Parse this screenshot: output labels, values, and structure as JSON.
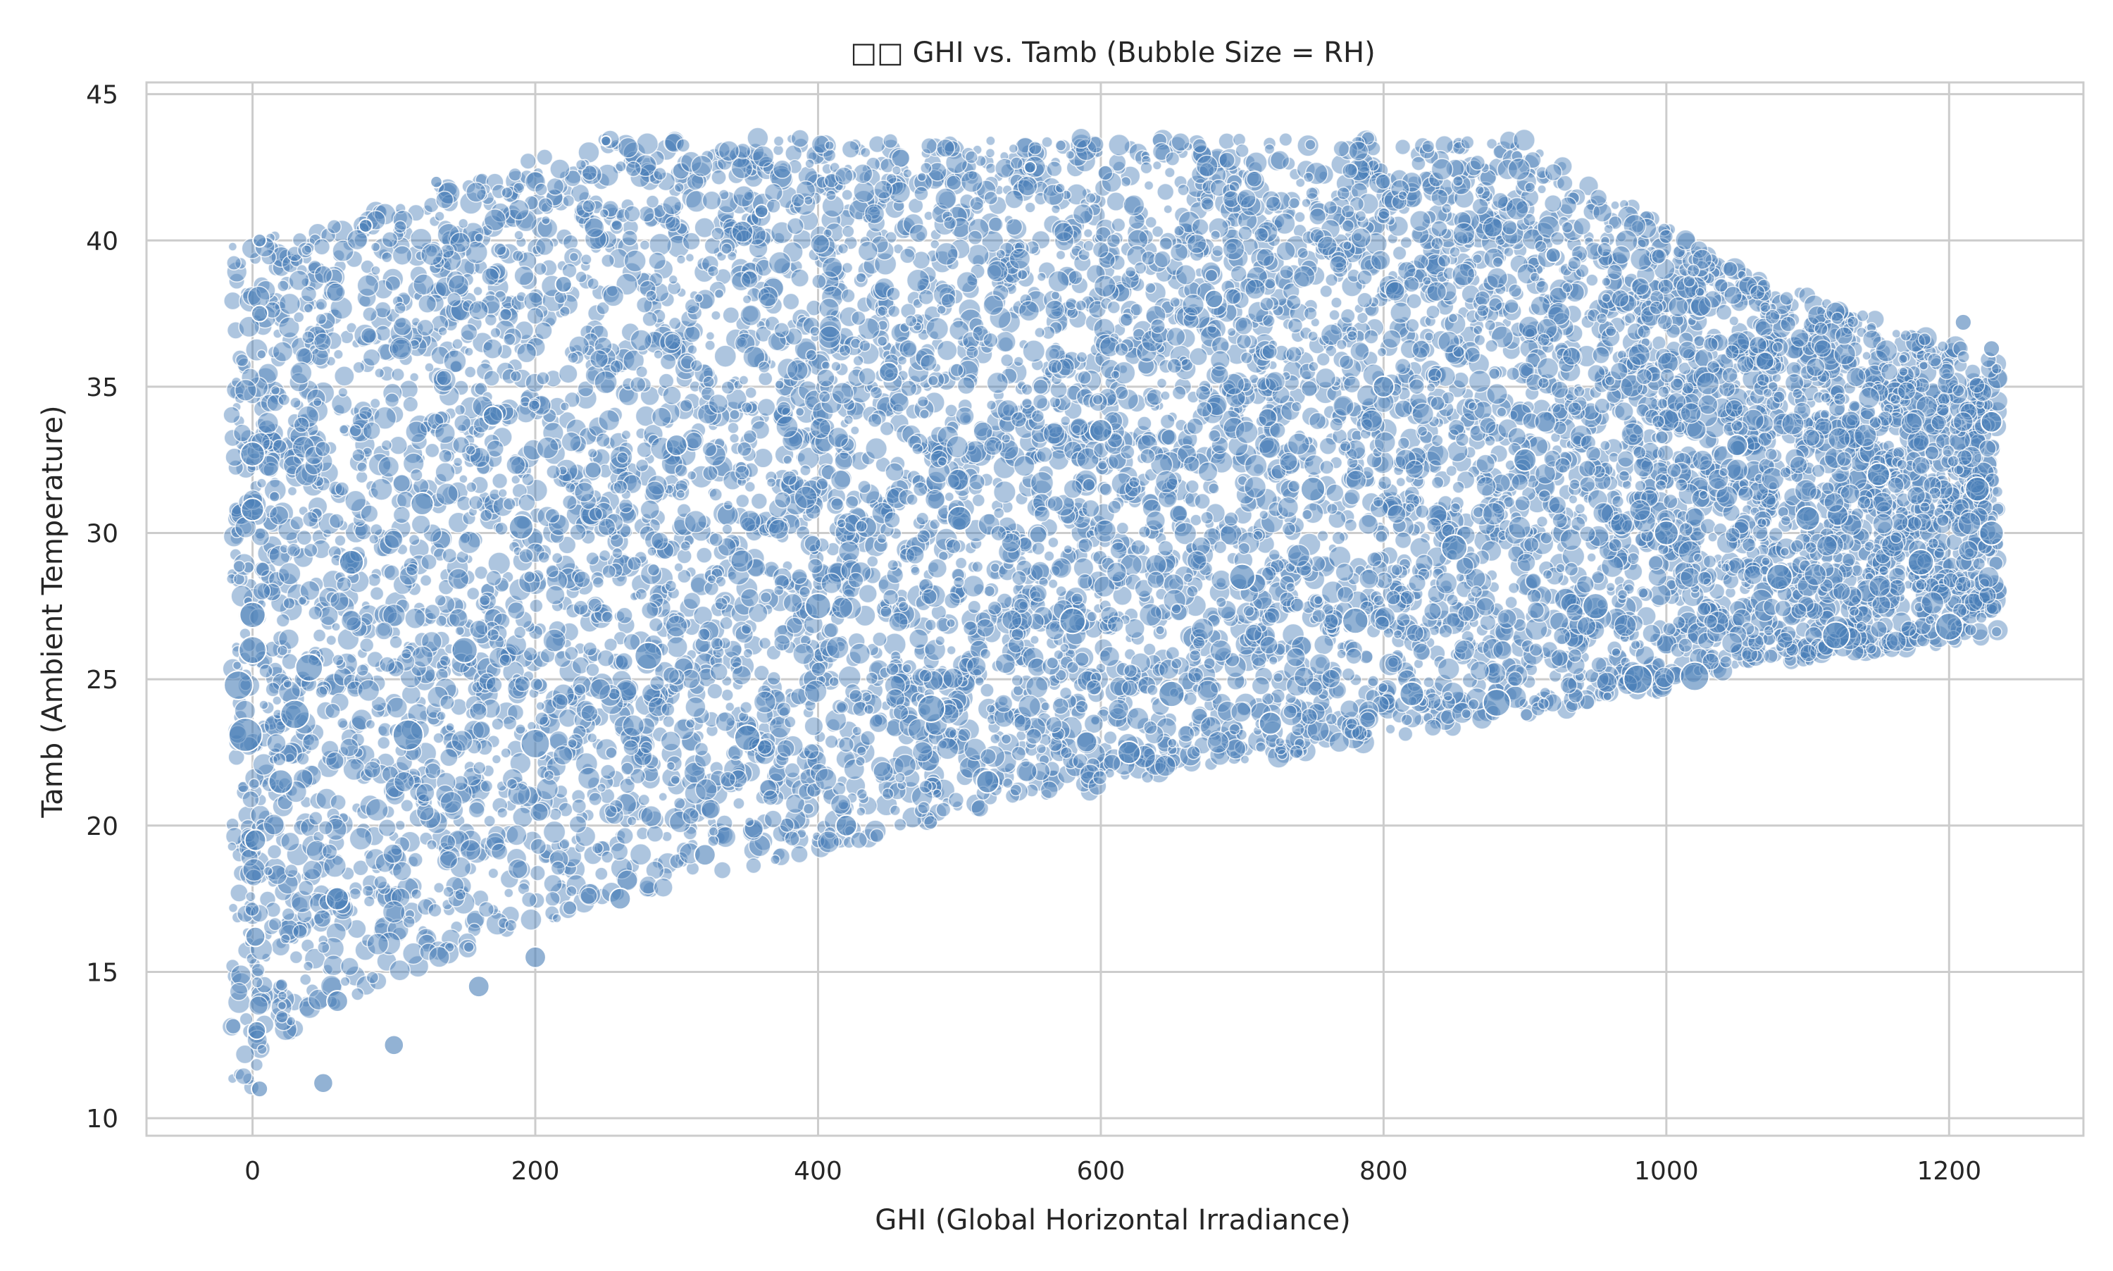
{
  "chart_data": {
    "type": "scatter",
    "title": "□□ GHI vs. Tamb (Bubble Size = RH)",
    "xlabel": "GHI (Global Horizontal Irradiance)",
    "ylabel": "Tamb (Ambient Temperature)",
    "xlim": [
      -75,
      1295
    ],
    "ylim": [
      9.4,
      45.4
    ],
    "xticks": [
      "0",
      "200",
      "400",
      "600",
      "800",
      "1000",
      "1200"
    ],
    "yticks": [
      "10",
      "15",
      "20",
      "25",
      "30",
      "35",
      "40",
      "45"
    ],
    "grid": true,
    "legend": "none",
    "colors": {
      "point_fill": "#4a7fb8",
      "point_edge": "#ffffff",
      "grid": "#cccccc",
      "frame": "#cccccc"
    },
    "points": [
      {
        "x": -10,
        "y": 24.8,
        "rh": 70
      },
      {
        "x": -5,
        "y": 23.1,
        "rh": 85
      },
      {
        "x": 0,
        "y": 27.2,
        "rh": 60
      },
      {
        "x": 0,
        "y": 32.7,
        "rh": 55
      },
      {
        "x": 0,
        "y": 30.8,
        "rh": 50
      },
      {
        "x": 0,
        "y": 26.0,
        "rh": 65
      },
      {
        "x": 2,
        "y": 19.5,
        "rh": 45
      },
      {
        "x": 2,
        "y": 16.2,
        "rh": 40
      },
      {
        "x": 3,
        "y": 13.0,
        "rh": 35
      },
      {
        "x": 5,
        "y": 11.0,
        "rh": 30
      },
      {
        "x": 5,
        "y": 37.5,
        "rh": 30
      },
      {
        "x": 5,
        "y": 40.0,
        "rh": 20
      },
      {
        "x": 20,
        "y": 21.5,
        "rh": 55
      },
      {
        "x": 30,
        "y": 23.8,
        "rh": 70
      },
      {
        "x": 40,
        "y": 25.4,
        "rh": 65
      },
      {
        "x": 50,
        "y": 11.2,
        "rh": 40
      },
      {
        "x": 60,
        "y": 14.0,
        "rh": 45
      },
      {
        "x": 60,
        "y": 17.5,
        "rh": 50
      },
      {
        "x": 70,
        "y": 29.0,
        "rh": 55
      },
      {
        "x": 80,
        "y": 40.5,
        "rh": 20
      },
      {
        "x": 100,
        "y": 12.5,
        "rh": 40
      },
      {
        "x": 110,
        "y": 23.1,
        "rh": 75
      },
      {
        "x": 120,
        "y": 31.0,
        "rh": 50
      },
      {
        "x": 130,
        "y": 42.0,
        "rh": 15
      },
      {
        "x": 150,
        "y": 26.0,
        "rh": 60
      },
      {
        "x": 160,
        "y": 14.5,
        "rh": 45
      },
      {
        "x": 170,
        "y": 34.0,
        "rh": 40
      },
      {
        "x": 190,
        "y": 30.2,
        "rh": 55
      },
      {
        "x": 200,
        "y": 15.5,
        "rh": 45
      },
      {
        "x": 200,
        "y": 22.8,
        "rh": 70
      },
      {
        "x": 220,
        "y": 38.5,
        "rh": 30
      },
      {
        "x": 250,
        "y": 43.4,
        "rh": 10
      },
      {
        "x": 260,
        "y": 17.5,
        "rh": 45
      },
      {
        "x": 280,
        "y": 25.8,
        "rh": 65
      },
      {
        "x": 300,
        "y": 33.0,
        "rh": 45
      },
      {
        "x": 320,
        "y": 19.0,
        "rh": 45
      },
      {
        "x": 350,
        "y": 23.0,
        "rh": 60
      },
      {
        "x": 360,
        "y": 41.0,
        "rh": 20
      },
      {
        "x": 400,
        "y": 27.5,
        "rh": 60
      },
      {
        "x": 420,
        "y": 20.0,
        "rh": 45
      },
      {
        "x": 450,
        "y": 35.5,
        "rh": 40
      },
      {
        "x": 480,
        "y": 24.0,
        "rh": 65
      },
      {
        "x": 500,
        "y": 30.5,
        "rh": 55
      },
      {
        "x": 520,
        "y": 21.5,
        "rh": 50
      },
      {
        "x": 550,
        "y": 42.5,
        "rh": 15
      },
      {
        "x": 580,
        "y": 27.0,
        "rh": 60
      },
      {
        "x": 600,
        "y": 33.5,
        "rh": 50
      },
      {
        "x": 620,
        "y": 22.5,
        "rh": 50
      },
      {
        "x": 650,
        "y": 24.5,
        "rh": 60
      },
      {
        "x": 680,
        "y": 38.0,
        "rh": 35
      },
      {
        "x": 700,
        "y": 28.5,
        "rh": 60
      },
      {
        "x": 720,
        "y": 23.5,
        "rh": 50
      },
      {
        "x": 750,
        "y": 31.5,
        "rh": 55
      },
      {
        "x": 780,
        "y": 27.0,
        "rh": 60
      },
      {
        "x": 800,
        "y": 35.0,
        "rh": 45
      },
      {
        "x": 820,
        "y": 24.5,
        "rh": 55
      },
      {
        "x": 850,
        "y": 29.5,
        "rh": 60
      },
      {
        "x": 880,
        "y": 24.2,
        "rh": 65
      },
      {
        "x": 900,
        "y": 32.5,
        "rh": 50
      },
      {
        "x": 920,
        "y": 39.5,
        "rh": 25
      },
      {
        "x": 950,
        "y": 27.5,
        "rh": 60
      },
      {
        "x": 980,
        "y": 25.0,
        "rh": 70
      },
      {
        "x": 1000,
        "y": 30.0,
        "rh": 55
      },
      {
        "x": 1020,
        "y": 25.1,
        "rh": 70
      },
      {
        "x": 1050,
        "y": 33.0,
        "rh": 45
      },
      {
        "x": 1080,
        "y": 28.5,
        "rh": 60
      },
      {
        "x": 1100,
        "y": 30.5,
        "rh": 55
      },
      {
        "x": 1120,
        "y": 26.5,
        "rh": 65
      },
      {
        "x": 1150,
        "y": 32.0,
        "rh": 50
      },
      {
        "x": 1180,
        "y": 29.0,
        "rh": 60
      },
      {
        "x": 1200,
        "y": 26.8,
        "rh": 65
      },
      {
        "x": 1210,
        "y": 37.2,
        "rh": 30
      },
      {
        "x": 1220,
        "y": 31.5,
        "rh": 55
      },
      {
        "x": 1230,
        "y": 30.0,
        "rh": 55
      },
      {
        "x": 1230,
        "y": 33.8,
        "rh": 45
      },
      {
        "x": 1230,
        "y": 36.3,
        "rh": 30
      }
    ]
  }
}
